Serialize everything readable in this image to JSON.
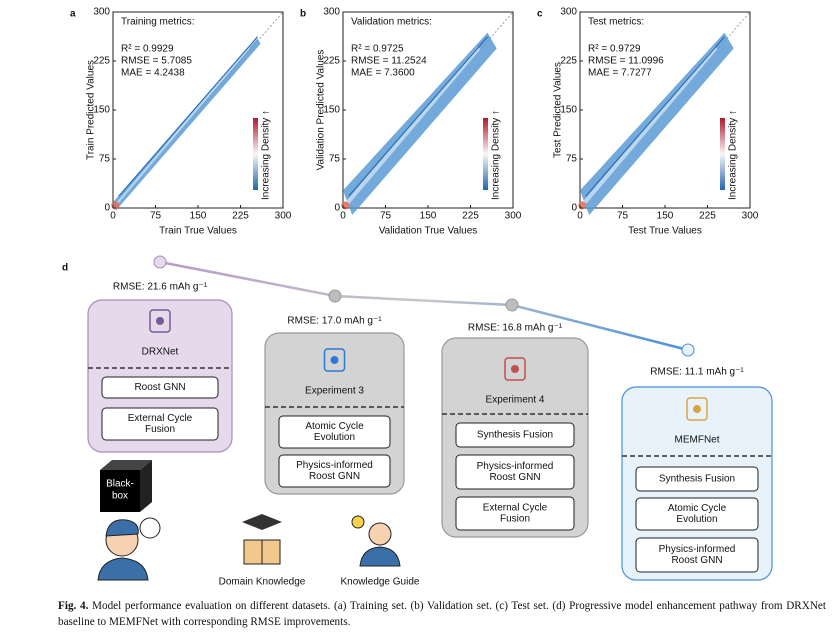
{
  "chart_data": [
    {
      "type": "density",
      "panel_label": "a",
      "metrics_title": "Training metrics:",
      "metrics": [
        "R² = 0.9929",
        "RMSE = 5.7085",
        "MAE = 4.2438"
      ],
      "xlabel": "Train True Values",
      "ylabel": "Train Predicted Values",
      "colorbar_label": "Increasing Density ↑",
      "xlim": [
        0,
        300
      ],
      "ylim": [
        0,
        300
      ],
      "xticks": [
        0,
        75,
        150,
        225,
        300
      ],
      "yticks": [
        0,
        75,
        150,
        225,
        300
      ]
    },
    {
      "type": "density",
      "panel_label": "b",
      "metrics_title": "Validation metrics:",
      "metrics": [
        "R² = 0.9725",
        "RMSE = 11.2524",
        "MAE = 7.3600"
      ],
      "xlabel": "Validation True Values",
      "ylabel": "Validation Predicted Values",
      "colorbar_label": "Increasing Density ↑",
      "xlim": [
        0,
        300
      ],
      "ylim": [
        0,
        300
      ],
      "xticks": [
        0,
        75,
        150,
        225,
        300
      ],
      "yticks": [
        0,
        75,
        150,
        225,
        300
      ]
    },
    {
      "type": "density",
      "panel_label": "c",
      "metrics_title": "Test metrics:",
      "metrics": [
        "R² = 0.9729",
        "RMSE = 11.0996",
        "MAE = 7.7277"
      ],
      "xlabel": "Test True Values",
      "ylabel": "Test Predicted Values",
      "colorbar_label": "Increasing Density ↑",
      "xlim": [
        0,
        300
      ],
      "ylim": [
        0,
        300
      ],
      "xticks": [
        0,
        75,
        150,
        225,
        300
      ],
      "yticks": [
        0,
        75,
        150,
        225,
        300
      ]
    }
  ],
  "diagram": {
    "panel_label": "d",
    "nodes": [
      {
        "rmse": "RMSE: 21.6 mAh g⁻¹",
        "name": "DRXNet",
        "components": [
          [
            "Roost GNN"
          ],
          [
            "External Cycle",
            "Fusion"
          ]
        ]
      },
      {
        "rmse": "RMSE: 17.0 mAh g⁻¹",
        "name": "Experiment 3",
        "components": [
          [
            "Atomic Cycle",
            "Evolution"
          ],
          [
            "Physics-informed",
            "Roost GNN"
          ]
        ]
      },
      {
        "rmse": "RMSE: 16.8 mAh g⁻¹",
        "name": "Experiment 4",
        "components": [
          [
            "Synthesis Fusion"
          ],
          [
            "Physics-informed",
            "Roost GNN"
          ],
          [
            "External Cycle",
            "Fusion"
          ]
        ]
      },
      {
        "rmse": "RMSE: 11.1 mAh g⁻¹",
        "name": "MEMFNet",
        "components": [
          [
            "Synthesis Fusion"
          ],
          [
            "Atomic Cycle",
            "Evolution"
          ],
          [
            "Physics-informed",
            "Roost GNN"
          ]
        ]
      }
    ],
    "blackbox": [
      "Black-",
      "box"
    ],
    "icons": [
      "Domain Knowledge",
      "Knowledge Guide"
    ]
  },
  "caption": {
    "label": "Fig. 4.",
    "text": "Model performance evaluation on different datasets. (a) Training set. (b) Validation set. (c) Test set. (d) Progressive model enhancement pathway from DRXNet baseline to MEMFNet with corresponding RMSE improvements."
  }
}
